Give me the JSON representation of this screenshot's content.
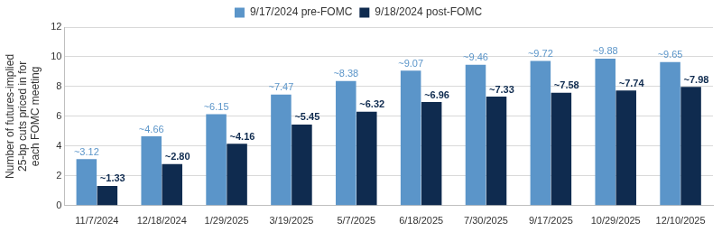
{
  "chart_data": {
    "type": "bar",
    "categories": [
      "11/7/2024",
      "12/18/2024",
      "1/29/2025",
      "3/19/2025",
      "5/7/2025",
      "6/18/2025",
      "7/30/2025",
      "9/17/2025",
      "10/29/2025",
      "12/10/2025"
    ],
    "series": [
      {
        "name": "9/17/2024 pre-FOMC",
        "color": "#5b95c9",
        "values": [
          3.12,
          4.66,
          6.15,
          7.47,
          8.38,
          9.07,
          9.46,
          9.72,
          9.88,
          9.65
        ],
        "value_labels": [
          "~3.12",
          "~4.66",
          "~6.15",
          "~7.47",
          "~8.38",
          "~9.07",
          "~9.46",
          "~9.72",
          "~9.88",
          "~9.65"
        ]
      },
      {
        "name": "9/18/2024 post-FOMC",
        "color": "#0f2b4f",
        "values": [
          1.33,
          2.8,
          4.16,
          5.45,
          6.32,
          6.96,
          7.33,
          7.58,
          7.74,
          7.98
        ],
        "value_labels": [
          "~1.33",
          "~2.80",
          "~4.16",
          "~5.45",
          "~6.32",
          "~6.96",
          "~7.33",
          "~7.58",
          "~7.74",
          "~7.98"
        ]
      }
    ],
    "y_label": [
      "Number of futures-implied",
      "25-bp cuts priced in for",
      "each FOMC meeting"
    ],
    "ylim": [
      0,
      12
    ],
    "yticks": [
      0,
      2,
      4,
      6,
      8,
      10,
      12
    ],
    "grid": true,
    "legend": "top",
    "data_labels": true
  }
}
